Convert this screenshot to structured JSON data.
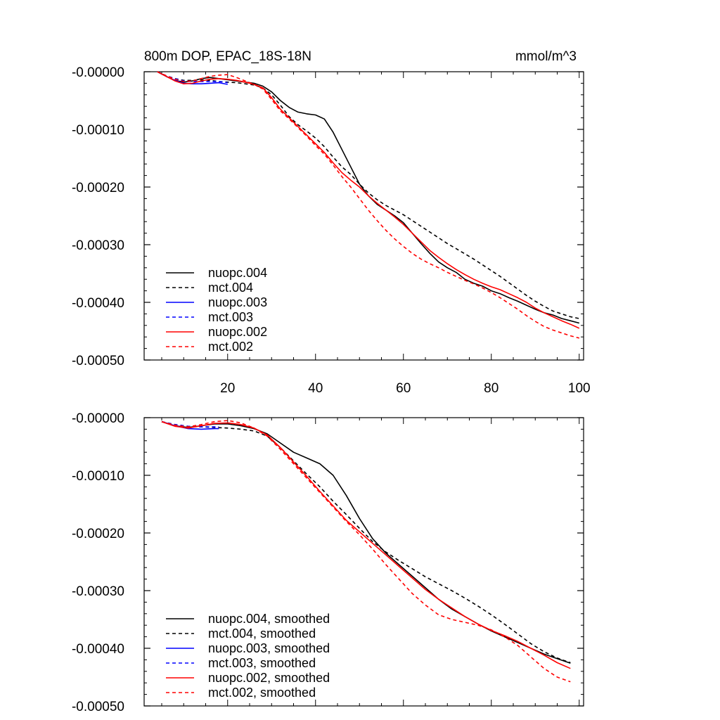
{
  "figure": {
    "title_left": "800m DOP, EPAC_18S-18N",
    "title_right": "mmol/m^3"
  },
  "chart_data": [
    {
      "type": "line",
      "panel": "top",
      "xlim": [
        1,
        101
      ],
      "ylim": [
        -0.0005,
        0.0
      ],
      "xticks": [
        20,
        40,
        60,
        80,
        100
      ],
      "xtick_labels": [
        "20",
        "40",
        "60",
        "80",
        "100"
      ],
      "yticks": [
        0.0,
        -0.0001,
        -0.0002,
        -0.0003,
        -0.0004,
        -0.0005
      ],
      "ytick_labels": [
        "-0.00000",
        "-0.00010",
        "-0.00020",
        "-0.00030",
        "-0.00040",
        "-0.00050"
      ],
      "legend_position": "bottom-left",
      "series": [
        {
          "name": "nuopc.004",
          "color": "#000000",
          "dash": "solid",
          "x": [
            4,
            6,
            8,
            10,
            12,
            14,
            16,
            18,
            20,
            22,
            24,
            26,
            28,
            30,
            32,
            34,
            36,
            38,
            40,
            42,
            44,
            46,
            48,
            50,
            52,
            54,
            56,
            58,
            60,
            62,
            64,
            66,
            68,
            70,
            72,
            74,
            76,
            78,
            80,
            82,
            84,
            86,
            88,
            90,
            92,
            94,
            96,
            98,
            100
          ],
          "y": [
            0,
            -8e-06,
            -1.5e-05,
            -1.8e-05,
            -1.6e-05,
            -1.2e-05,
            -1e-05,
            -1.2e-05,
            -1.4e-05,
            -1.6e-05,
            -1.8e-05,
            -2e-05,
            -2.5e-05,
            -3.5e-05,
            -5e-05,
            -6.2e-05,
            -7e-05,
            -7.3e-05,
            -7.5e-05,
            -8.2e-05,
            -0.000105,
            -0.000135,
            -0.000165,
            -0.000195,
            -0.000215,
            -0.00023,
            -0.00024,
            -0.00025,
            -0.000262,
            -0.00028,
            -0.000298,
            -0.000315,
            -0.00033,
            -0.00034,
            -0.000348,
            -0.00036,
            -0.000367,
            -0.000372,
            -0.00038,
            -0.000385,
            -0.000392,
            -0.000398,
            -0.000405,
            -0.000412,
            -0.000418,
            -0.000422,
            -0.000428,
            -0.000432,
            -0.000436
          ]
        },
        {
          "name": "mct.004",
          "color": "#000000",
          "dash": "dashed",
          "x": [
            4,
            6,
            8,
            10,
            12,
            14,
            16,
            18,
            20,
            22,
            24,
            26,
            28,
            30,
            32,
            34,
            36,
            38,
            40,
            42,
            44,
            46,
            48,
            50,
            52,
            54,
            56,
            58,
            60,
            62,
            64,
            66,
            68,
            70,
            72,
            74,
            76,
            78,
            80,
            82,
            84,
            86,
            88,
            90,
            92,
            94,
            96,
            98,
            100
          ],
          "y": [
            0,
            -7e-06,
            -1.2e-05,
            -1.5e-05,
            -1.5e-05,
            -1.4e-05,
            -1.5e-05,
            -1.7e-05,
            -1.8e-05,
            -1.9e-05,
            -2.1e-05,
            -2.3e-05,
            -2.8e-05,
            -4e-05,
            -5.8e-05,
            -7.8e-05,
            -9.2e-05,
            -0.000103,
            -0.000115,
            -0.00013,
            -0.000148,
            -0.000165,
            -0.000178,
            -0.000195,
            -0.00021,
            -0.000222,
            -0.000232,
            -0.00024,
            -0.000248,
            -0.000258,
            -0.000268,
            -0.000278,
            -0.000288,
            -0.000298,
            -0.000307,
            -0.000316,
            -0.000325,
            -0.000335,
            -0.000345,
            -0.000355,
            -0.000366,
            -0.000377,
            -0.000388,
            -0.000398,
            -0.000407,
            -0.000415,
            -0.00042,
            -0.000425,
            -0.000428
          ]
        },
        {
          "name": "nuopc.003",
          "color": "#0000ff",
          "dash": "solid",
          "x": [
            4,
            6,
            8,
            10,
            12,
            14,
            16,
            18,
            20
          ],
          "y": [
            0,
            -8e-06,
            -1.5e-05,
            -2e-05,
            -2.1e-05,
            -2.1e-05,
            -2e-05,
            -1.9e-05,
            -2.2e-05
          ]
        },
        {
          "name": "mct.003",
          "color": "#0000ff",
          "dash": "dashed",
          "x": [
            4,
            6,
            8,
            10,
            12,
            14,
            16,
            18,
            20
          ],
          "y": [
            0,
            -7e-06,
            -1.2e-05,
            -1.6e-05,
            -1.7e-05,
            -1.7e-05,
            -1.7e-05,
            -1.7e-05,
            -1.9e-05
          ]
        },
        {
          "name": "nuopc.002",
          "color": "#ff0000",
          "dash": "solid",
          "x": [
            4,
            6,
            8,
            10,
            12,
            14,
            16,
            18,
            20,
            22,
            24,
            26,
            28,
            30,
            32,
            34,
            36,
            38,
            40,
            42,
            44,
            46,
            48,
            50,
            52,
            54,
            56,
            58,
            60,
            62,
            64,
            66,
            68,
            70,
            72,
            74,
            76,
            78,
            80,
            82,
            84,
            86,
            88,
            90,
            92,
            94,
            96,
            98,
            100
          ],
          "y": [
            0,
            -8e-06,
            -1.6e-05,
            -2.1e-05,
            -2e-05,
            -1.6e-05,
            -1.3e-05,
            -1.2e-05,
            -1.3e-05,
            -1.5e-05,
            -1.8e-05,
            -2.2e-05,
            -2.8e-05,
            -4.5e-05,
            -6.5e-05,
            -8e-05,
            -9.5e-05,
            -0.00011,
            -0.000125,
            -0.00014,
            -0.000158,
            -0.000175,
            -0.000188,
            -0.0002,
            -0.000215,
            -0.000228,
            -0.00024,
            -0.000252,
            -0.000265,
            -0.00028,
            -0.000295,
            -0.00031,
            -0.000322,
            -0.000333,
            -0.000343,
            -0.000352,
            -0.00036,
            -0.000367,
            -0.000373,
            -0.000378,
            -0.000385,
            -0.000392,
            -0.0004,
            -0.00041,
            -0.000418,
            -0.000425,
            -0.000432,
            -0.000438,
            -0.000445
          ]
        },
        {
          "name": "mct.002",
          "color": "#ff0000",
          "dash": "dashed",
          "x": [
            4,
            6,
            8,
            10,
            12,
            14,
            16,
            18,
            20,
            22,
            24,
            26,
            28,
            30,
            32,
            34,
            36,
            38,
            40,
            42,
            44,
            46,
            48,
            50,
            52,
            54,
            56,
            58,
            60,
            62,
            64,
            66,
            68,
            70,
            72,
            74,
            76,
            78,
            80,
            82,
            84,
            86,
            88,
            90,
            92,
            94,
            96,
            98,
            100
          ],
          "y": [
            0,
            -7e-06,
            -1.3e-05,
            -1.7e-05,
            -1.6e-05,
            -1.2e-05,
            -8e-06,
            -6e-06,
            -5e-06,
            -1e-05,
            -1.6e-05,
            -2.2e-05,
            -3e-05,
            -4.8e-05,
            -6.8e-05,
            -8.2e-05,
            -9.7e-05,
            -0.000112,
            -0.000128,
            -0.000143,
            -0.000162,
            -0.000182,
            -0.0002,
            -0.00022,
            -0.00024,
            -0.000258,
            -0.000275,
            -0.00029,
            -0.000303,
            -0.000315,
            -0.000325,
            -0.000333,
            -0.00034,
            -0.000348,
            -0.000355,
            -0.000362,
            -0.000368,
            -0.000375,
            -0.000383,
            -0.000392,
            -0.000402,
            -0.000412,
            -0.000423,
            -0.000433,
            -0.000442,
            -0.000448,
            -0.000453,
            -0.000458,
            -0.000462
          ]
        }
      ]
    },
    {
      "type": "line",
      "panel": "bottom",
      "xlim": [
        1,
        101
      ],
      "ylim": [
        -0.0005,
        0.0
      ],
      "xticks": [
        20,
        40,
        60,
        80,
        100
      ],
      "xtick_labels": [],
      "yticks": [
        0.0,
        -0.0001,
        -0.0002,
        -0.0003,
        -0.0004,
        -0.0005
      ],
      "ytick_labels": [
        "-0.00000",
        "-0.00010",
        "-0.00020",
        "-0.00030",
        "-0.00040",
        "-0.00050"
      ],
      "legend_position": "bottom-left",
      "series": [
        {
          "name": "nuopc.004, smoothed",
          "color": "#000000",
          "dash": "solid",
          "x": [
            5,
            8,
            11,
            14,
            17,
            20,
            23,
            26,
            29,
            32,
            35,
            38,
            41,
            44,
            47,
            50,
            53,
            56,
            59,
            62,
            65,
            68,
            71,
            74,
            77,
            80,
            83,
            86,
            89,
            92,
            95,
            98
          ],
          "y": [
            -7e-06,
            -1.4e-05,
            -1.7e-05,
            -1.4e-05,
            -1.1e-05,
            -1.1e-05,
            -1.4e-05,
            -1.9e-05,
            -2.8e-05,
            -4.4e-05,
            -6e-05,
            -7e-05,
            -8e-05,
            -0.0001,
            -0.000135,
            -0.000175,
            -0.00021,
            -0.000235,
            -0.000255,
            -0.000275,
            -0.000295,
            -0.000315,
            -0.000332,
            -0.000345,
            -0.000358,
            -0.00037,
            -0.00038,
            -0.00039,
            -0.0004,
            -0.00041,
            -0.000418,
            -0.000426
          ]
        },
        {
          "name": "mct.004, smoothed",
          "color": "#000000",
          "dash": "dashed",
          "x": [
            5,
            8,
            11,
            14,
            17,
            20,
            23,
            26,
            29,
            32,
            35,
            38,
            41,
            44,
            47,
            50,
            53,
            56,
            59,
            62,
            65,
            68,
            71,
            74,
            77,
            80,
            83,
            86,
            89,
            92,
            95,
            98
          ],
          "y": [
            -7e-06,
            -1.2e-05,
            -1.5e-05,
            -1.6e-05,
            -1.7e-05,
            -1.8e-05,
            -2e-05,
            -2.3e-05,
            -3.2e-05,
            -5.2e-05,
            -7.5e-05,
            -9.8e-05,
            -0.00012,
            -0.000145,
            -0.000168,
            -0.000192,
            -0.000215,
            -0.000233,
            -0.000248,
            -0.000262,
            -0.000276,
            -0.000288,
            -0.0003,
            -0.000313,
            -0.000327,
            -0.000342,
            -0.000358,
            -0.000375,
            -0.000392,
            -0.000406,
            -0.000417,
            -0.000425
          ]
        },
        {
          "name": "nuopc.003, smoothed",
          "color": "#0000ff",
          "dash": "solid",
          "x": [
            5,
            8,
            11,
            14,
            17,
            18
          ],
          "y": [
            -7e-06,
            -1.4e-05,
            -1.9e-05,
            -2e-05,
            -1.9e-05,
            -1.9e-05
          ]
        },
        {
          "name": "mct.003, smoothed",
          "color": "#0000ff",
          "dash": "dashed",
          "x": [
            5,
            8,
            11,
            14,
            17,
            18
          ],
          "y": [
            -7e-06,
            -1.2e-05,
            -1.5e-05,
            -1.6e-05,
            -1.6e-05,
            -1.6e-05
          ]
        },
        {
          "name": "nuopc.002, smoothed",
          "color": "#ff0000",
          "dash": "solid",
          "x": [
            5,
            8,
            11,
            14,
            17,
            20,
            23,
            26,
            29,
            32,
            35,
            38,
            41,
            44,
            47,
            50,
            53,
            56,
            59,
            62,
            65,
            68,
            71,
            74,
            77,
            80,
            83,
            86,
            89,
            92,
            95,
            98
          ],
          "y": [
            -7e-06,
            -1.5e-05,
            -1.8e-05,
            -1.4e-05,
            -1e-05,
            -9e-06,
            -1.2e-05,
            -1.8e-05,
            -3e-05,
            -5.2e-05,
            -7.7e-05,
            -0.000102,
            -0.000128,
            -0.000153,
            -0.000178,
            -0.000198,
            -0.000218,
            -0.000238,
            -0.000258,
            -0.000278,
            -0.000298,
            -0.000315,
            -0.00033,
            -0.000345,
            -0.000358,
            -0.000369,
            -0.000378,
            -0.000388,
            -0.0004,
            -0.000412,
            -0.000425,
            -0.000435
          ]
        },
        {
          "name": "mct.002, smoothed",
          "color": "#ff0000",
          "dash": "dashed",
          "x": [
            5,
            8,
            11,
            14,
            17,
            20,
            23,
            26,
            29,
            32,
            35,
            38,
            41,
            44,
            47,
            50,
            53,
            56,
            59,
            62,
            65,
            68,
            71,
            74,
            77,
            80,
            83,
            86,
            89,
            92,
            95,
            98
          ],
          "y": [
            -7e-06,
            -1.3e-05,
            -1.6e-05,
            -1.2e-05,
            -7e-06,
            -5e-06,
            -9e-06,
            -1.8e-05,
            -3.2e-05,
            -5.5e-05,
            -8e-05,
            -0.000105,
            -0.00013,
            -0.000155,
            -0.00018,
            -0.000203,
            -0.000228,
            -0.000255,
            -0.00028,
            -0.000305,
            -0.000325,
            -0.000342,
            -0.00035,
            -0.000355,
            -0.00036,
            -0.000368,
            -0.00038,
            -0.000395,
            -0.000415,
            -0.000435,
            -0.00045,
            -0.000458
          ]
        }
      ]
    }
  ]
}
